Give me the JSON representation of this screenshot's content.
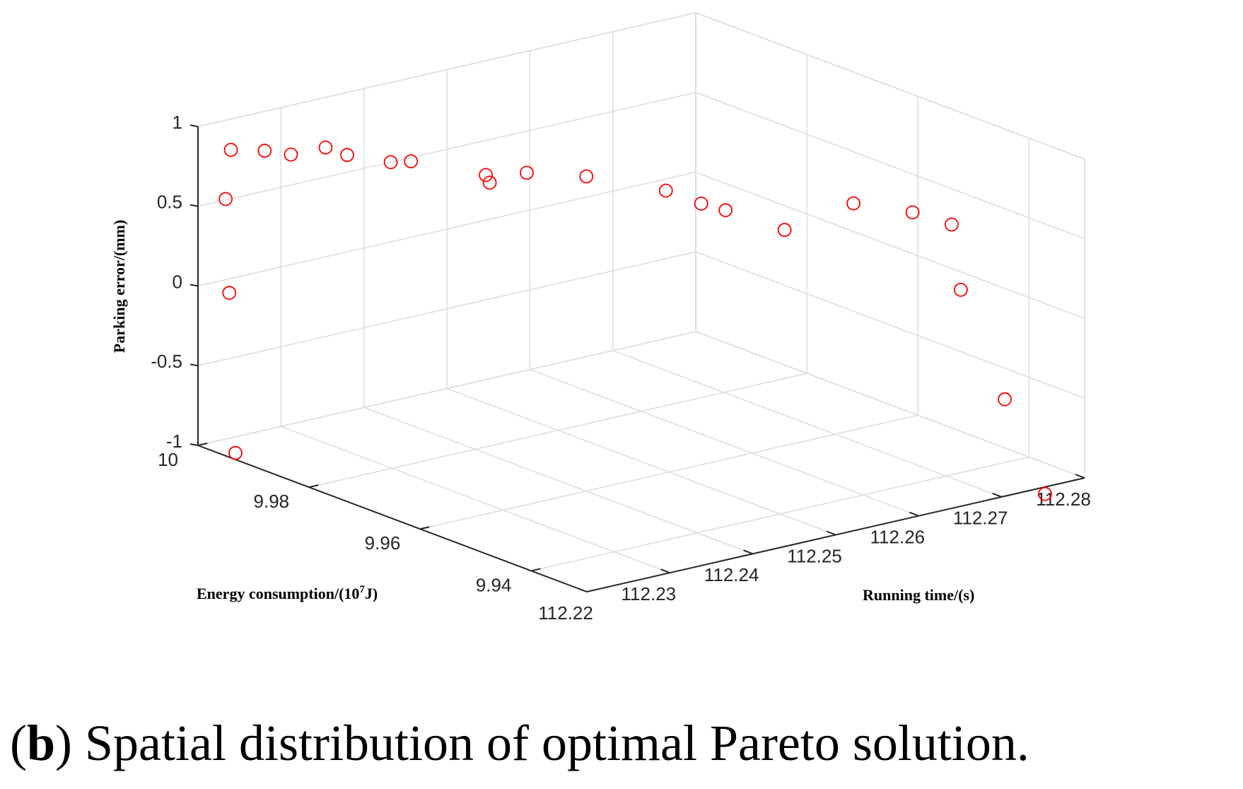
{
  "chart_data": {
    "type": "scatter3d",
    "title": "",
    "xlabel": "Running time/(s)",
    "ylabel": "Energy consumption/(10",
    "ylabel_sup": "7",
    "ylabel_suffix": "J)",
    "zlabel": "Parking error/(mm)",
    "xlim": [
      112.22,
      112.28
    ],
    "ylim": [
      9.93,
      10.0
    ],
    "zlim": [
      -1,
      1
    ],
    "x_ticks": [
      "112.22",
      "112.23",
      "112.24",
      "112.25",
      "112.26",
      "112.27",
      "112.28"
    ],
    "y_ticks": [
      "10",
      "9.98",
      "9.96",
      "9.94"
    ],
    "z_ticks": [
      "1",
      "0.5",
      "0",
      "-0.5",
      "-1"
    ],
    "marker_color": "#ff0000",
    "points": [
      {
        "x": 112.2213,
        "y": 9.9952,
        "z": -1.0
      },
      {
        "x": 112.2217,
        "y": 9.9969,
        "z": -0.023
      },
      {
        "x": 112.2226,
        "y": 9.9989,
        "z": 0.529
      },
      {
        "x": 112.2235,
        "y": 9.9993,
        "z": 0.821
      },
      {
        "x": 112.2265,
        "y": 9.9977,
        "z": 0.801
      },
      {
        "x": 112.2286,
        "y": 9.9961,
        "z": 0.773
      },
      {
        "x": 112.2321,
        "y": 9.9951,
        "z": 0.789
      },
      {
        "x": 112.2335,
        "y": 9.9933,
        "z": 0.749
      },
      {
        "x": 112.2352,
        "y": 9.988,
        "z": 0.753
      },
      {
        "x": 112.2369,
        "y": 9.9869,
        "z": 0.753
      },
      {
        "x": 112.2405,
        "y": 9.9781,
        "z": 0.691
      },
      {
        "x": 112.2413,
        "y": 9.98,
        "z": 0.705
      },
      {
        "x": 112.2449,
        "y": 9.978,
        "z": 0.702
      },
      {
        "x": 112.2484,
        "y": 9.9725,
        "z": 0.71
      },
      {
        "x": 112.2523,
        "y": 9.964,
        "z": 0.686
      },
      {
        "x": 112.2534,
        "y": 9.9593,
        "z": 0.653
      },
      {
        "x": 112.2548,
        "y": 9.957,
        "z": 0.625
      },
      {
        "x": 112.2575,
        "y": 9.9504,
        "z": 0.556
      },
      {
        "x": 112.2652,
        "y": 9.9495,
        "z": 0.643
      },
      {
        "x": 112.2687,
        "y": 9.9441,
        "z": 0.615
      },
      {
        "x": 112.271,
        "y": 9.9405,
        "z": 0.559
      },
      {
        "x": 112.2703,
        "y": 9.9378,
        "z": 0.193
      },
      {
        "x": 112.2756,
        "y": 9.9378,
        "z": -0.557
      },
      {
        "x": 112.2767,
        "y": 9.9322,
        "z": -1.09
      }
    ]
  },
  "caption": {
    "open": "(",
    "letter": "b",
    "text": ") Spatial distribution of optimal Pareto solution."
  }
}
